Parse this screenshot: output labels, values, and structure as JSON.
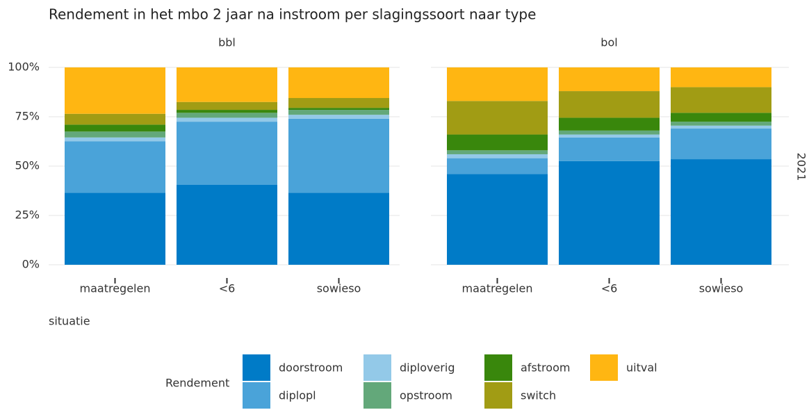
{
  "chart_data": {
    "type": "bar",
    "stacked": true,
    "title": "Rendement in het mbo 2 jaar na instroom per slagingssoort naar type",
    "xlabel": "situatie",
    "row_label": "2021",
    "legend_title": "Rendement",
    "facets": [
      "bbl",
      "bol"
    ],
    "categories": [
      "maatregelen",
      "<6",
      "sowieso"
    ],
    "ylim": [
      0,
      100
    ],
    "yticks": [
      {
        "value": 0,
        "label": "0%"
      },
      {
        "value": 25,
        "label": "25%"
      },
      {
        "value": 50,
        "label": "50%"
      },
      {
        "value": 75,
        "label": "75%"
      },
      {
        "value": 100,
        "label": "100%"
      }
    ],
    "grid": true,
    "series": [
      {
        "name": "doorstroom",
        "color": "#007bc7",
        "values": [
          [
            36.5,
            40.5,
            36.5
          ],
          [
            46,
            52.5,
            53.5
          ]
        ]
      },
      {
        "name": "diplopl",
        "color": "#4aa3d9",
        "values": [
          [
            26,
            32,
            37.5
          ],
          [
            8,
            12,
            15.5
          ]
        ]
      },
      {
        "name": "diploverig",
        "color": "#93c9e8",
        "values": [
          [
            2,
            2,
            2
          ],
          [
            2,
            1.5,
            1.5
          ]
        ]
      },
      {
        "name": "opstroom",
        "color": "#63a87a",
        "values": [
          [
            3,
            2.5,
            2.5
          ],
          [
            2,
            2,
            2
          ]
        ]
      },
      {
        "name": "afstroom",
        "color": "#39870c",
        "values": [
          [
            3.5,
            1.5,
            1
          ],
          [
            8,
            6.5,
            4.5
          ]
        ]
      },
      {
        "name": "switch",
        "color": "#a19c14",
        "values": [
          [
            5.5,
            4,
            5
          ],
          [
            17,
            13.5,
            13
          ]
        ]
      },
      {
        "name": "uitval",
        "color": "#ffb612",
        "values": [
          [
            23.5,
            17.5,
            15.5
          ],
          [
            17,
            12,
            10
          ]
        ]
      }
    ]
  }
}
